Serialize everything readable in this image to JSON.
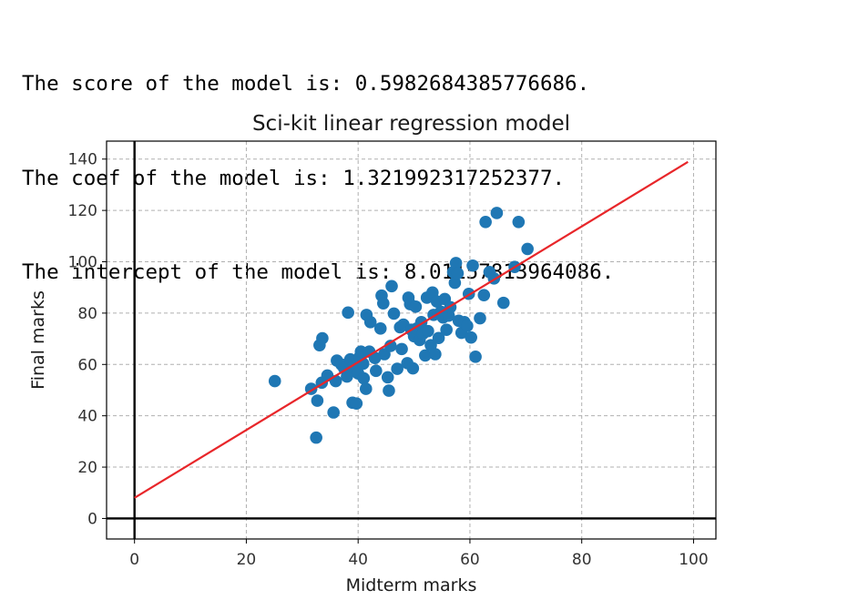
{
  "output": {
    "lines": [
      "The score of the model is: 0.5982684385776686.",
      "The coef of the model is: 1.321992317252377.",
      "The intercept of the model is: 8.01157813964086."
    ]
  },
  "chart_data": {
    "type": "scatter",
    "title": "Sci-kit linear regression model",
    "xlabel": "Midterm marks",
    "ylabel": "Final marks",
    "xlim": [
      -5,
      104
    ],
    "ylim": [
      -8,
      147
    ],
    "xticks": [
      0,
      20,
      40,
      60,
      80,
      100
    ],
    "yticks": [
      0,
      20,
      40,
      60,
      80,
      100,
      120,
      140
    ],
    "grid": true,
    "grid_style": "dashed",
    "zero_axes": true,
    "colors": {
      "points": "#1f77b4",
      "line": "#e8262a",
      "zero_axes": "#000000",
      "grid": "#b0b0b0"
    },
    "points": [
      [
        25.1,
        53.5
      ],
      [
        32.5,
        31.5
      ],
      [
        31.6,
        50.5
      ],
      [
        32.7,
        45.9
      ],
      [
        33.1,
        67.5
      ],
      [
        33.6,
        70.2
      ],
      [
        33.5,
        52.9
      ],
      [
        34.5,
        55.7
      ],
      [
        35.6,
        41.3
      ],
      [
        36.0,
        53.5
      ],
      [
        36.2,
        61.5
      ],
      [
        37.0,
        60.0
      ],
      [
        37.5,
        58.5
      ],
      [
        38.0,
        55.3
      ],
      [
        38.2,
        80.2
      ],
      [
        38.6,
        62.0
      ],
      [
        39.1,
        59.0
      ],
      [
        39.0,
        45.1
      ],
      [
        39.7,
        44.8
      ],
      [
        40.0,
        56.5
      ],
      [
        40.3,
        63.0
      ],
      [
        40.5,
        65.0
      ],
      [
        40.9,
        60.3
      ],
      [
        41.0,
        54.6
      ],
      [
        41.4,
        50.5
      ],
      [
        41.5,
        79.3
      ],
      [
        42.0,
        65.0
      ],
      [
        42.2,
        76.5
      ],
      [
        43.0,
        62.5
      ],
      [
        43.2,
        57.5
      ],
      [
        44.0,
        74.0
      ],
      [
        44.2,
        86.8
      ],
      [
        44.5,
        83.8
      ],
      [
        44.7,
        64.0
      ],
      [
        45.3,
        55.0
      ],
      [
        45.5,
        49.8
      ],
      [
        45.8,
        67.2
      ],
      [
        46.0,
        90.5
      ],
      [
        46.4,
        79.8
      ],
      [
        47.0,
        58.3
      ],
      [
        47.5,
        74.5
      ],
      [
        47.8,
        66.0
      ],
      [
        48.1,
        75.5
      ],
      [
        48.8,
        60.5
      ],
      [
        49.0,
        86.0
      ],
      [
        49.3,
        83.5
      ],
      [
        49.5,
        73.5
      ],
      [
        49.8,
        58.5
      ],
      [
        50.0,
        71.0
      ],
      [
        50.3,
        82.5
      ],
      [
        50.5,
        74.0
      ],
      [
        51.0,
        69.5
      ],
      [
        51.3,
        76.5
      ],
      [
        51.6,
        72.0
      ],
      [
        52.0,
        63.5
      ],
      [
        52.3,
        86.0
      ],
      [
        52.5,
        73.0
      ],
      [
        53.0,
        67.5
      ],
      [
        53.3,
        88.0
      ],
      [
        53.5,
        79.3
      ],
      [
        53.8,
        64.0
      ],
      [
        54.1,
        84.5
      ],
      [
        54.4,
        70.3
      ],
      [
        54.8,
        80.5
      ],
      [
        55.2,
        78.3
      ],
      [
        55.5,
        85.5
      ],
      [
        55.8,
        73.5
      ],
      [
        56.2,
        79.0
      ],
      [
        56.5,
        82.3
      ],
      [
        57.0,
        96.0
      ],
      [
        57.3,
        91.8
      ],
      [
        57.5,
        99.5
      ],
      [
        57.8,
        95.5
      ],
      [
        58.0,
        77.0
      ],
      [
        58.5,
        72.3
      ],
      [
        59.0,
        76.5
      ],
      [
        59.5,
        75.0
      ],
      [
        59.8,
        87.5
      ],
      [
        60.2,
        70.5
      ],
      [
        60.5,
        98.5
      ],
      [
        61.0,
        63.0
      ],
      [
        61.8,
        78.0
      ],
      [
        62.5,
        87.0
      ],
      [
        62.8,
        115.5
      ],
      [
        63.5,
        96.0
      ],
      [
        64.3,
        93.5
      ],
      [
        64.8,
        119.0
      ],
      [
        66.0,
        84.0
      ],
      [
        68.0,
        98.0
      ],
      [
        68.7,
        115.5
      ],
      [
        70.3,
        105.0
      ]
    ],
    "regression_line": {
      "coef": 1.321992317252377,
      "intercept": 8.01157813964086,
      "x_range": [
        0,
        99
      ]
    }
  }
}
